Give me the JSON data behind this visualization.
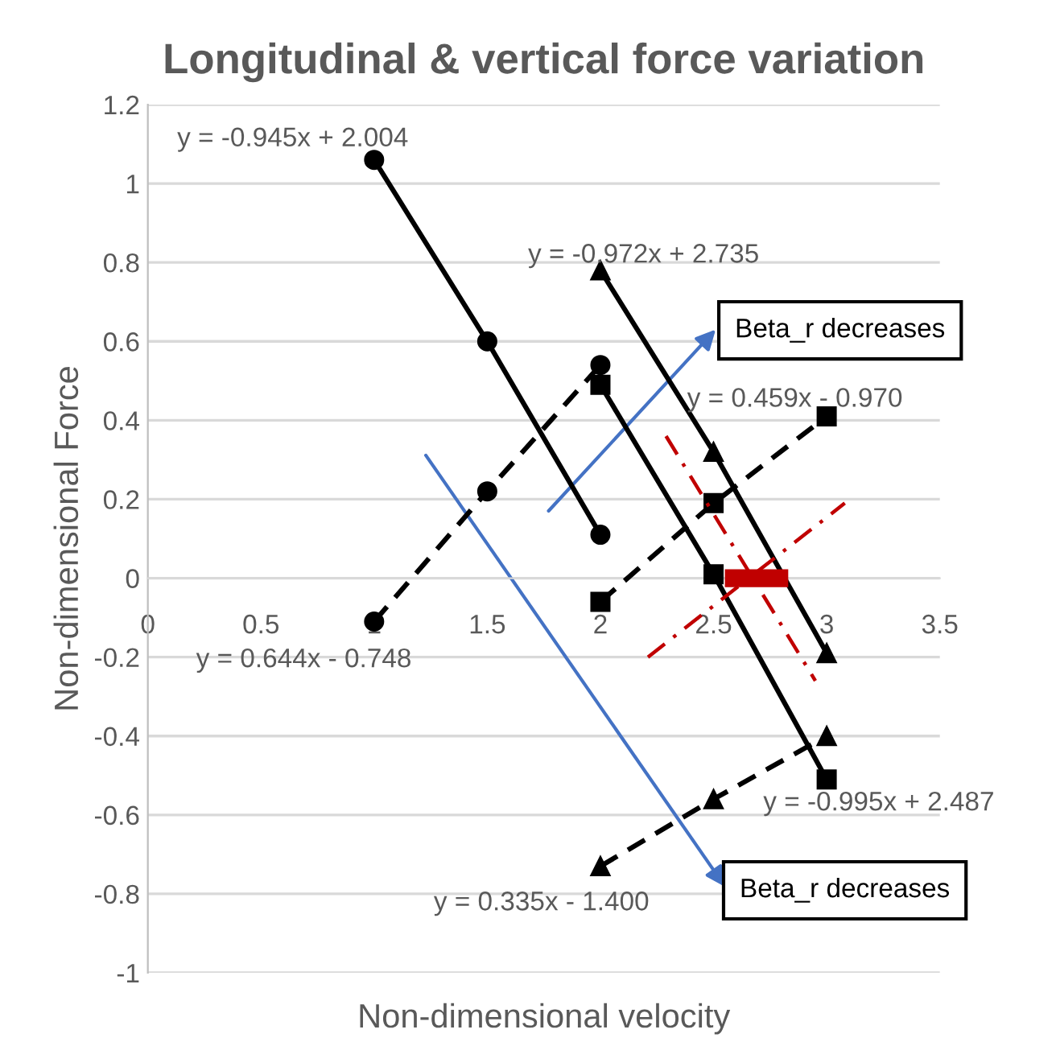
{
  "chart_data": {
    "type": "line",
    "title": "Longitudinal & vertical force variation",
    "xlabel": "Non-dimensional velocity",
    "ylabel": "Non-dimensional Force",
    "xlim": [
      0,
      3.5
    ],
    "xticks": [
      0,
      0.5,
      1,
      1.5,
      2,
      2.5,
      3,
      3.5
    ],
    "ylim": [
      -1,
      1.2
    ],
    "yticks": [
      -1,
      -0.8,
      -0.6,
      -0.4,
      -0.2,
      0,
      0.2,
      0.4,
      0.6,
      0.8,
      1,
      1.2
    ],
    "grid": "y",
    "series": [
      {
        "color": "#000000",
        "marker": "circle",
        "line_style": "solid",
        "x": [
          1,
          1.5,
          2
        ],
        "values": [
          1.06,
          0.6,
          0.11
        ]
      },
      {
        "color": "#000000",
        "marker": "circle",
        "line_style": "dashed",
        "x": [
          1,
          1.5,
          2
        ],
        "values": [
          -0.11,
          0.22,
          0.54
        ]
      },
      {
        "color": "#000000",
        "marker": "square",
        "line_style": "solid",
        "x": [
          2,
          2.5,
          3
        ],
        "values": [
          0.49,
          0.01,
          -0.51
        ]
      },
      {
        "color": "#000000",
        "marker": "square",
        "line_style": "dashed",
        "x": [
          2,
          2.5,
          3
        ],
        "values": [
          -0.06,
          0.19,
          0.41
        ]
      },
      {
        "color": "#000000",
        "marker": "triangle",
        "line_style": "solid",
        "x": [
          2,
          2.5,
          3
        ],
        "values": [
          0.78,
          0.32,
          -0.19
        ]
      },
      {
        "color": "#000000",
        "marker": "triangle",
        "line_style": "dashed",
        "x": [
          2,
          2.5,
          3
        ],
        "values": [
          -0.73,
          -0.56,
          -0.4
        ]
      },
      {
        "color": "#c00000",
        "marker": "none",
        "line_style": "dashdot",
        "x": [
          2.29,
          2.95
        ],
        "values": [
          0.36,
          -0.26
        ]
      },
      {
        "color": "#c00000",
        "marker": "none",
        "line_style": "dashdot",
        "x": [
          2.21,
          3.08
        ],
        "values": [
          -0.2,
          0.19
        ]
      },
      {
        "type": "bar",
        "color": "#c00000",
        "x": [
          2.55,
          2.83
        ],
        "values": [
          0,
          0
        ]
      }
    ],
    "annotations": [
      "y = -0.945x + 2.004",
      "y = -0.972x + 2.735",
      "y = 0.459x - 0.970",
      "y = 0.644x - 0.748",
      "y = -0.995x + 2.487",
      "y = 0.335x - 1.400",
      "Beta_r decreases",
      "Beta_r decreases"
    ]
  }
}
